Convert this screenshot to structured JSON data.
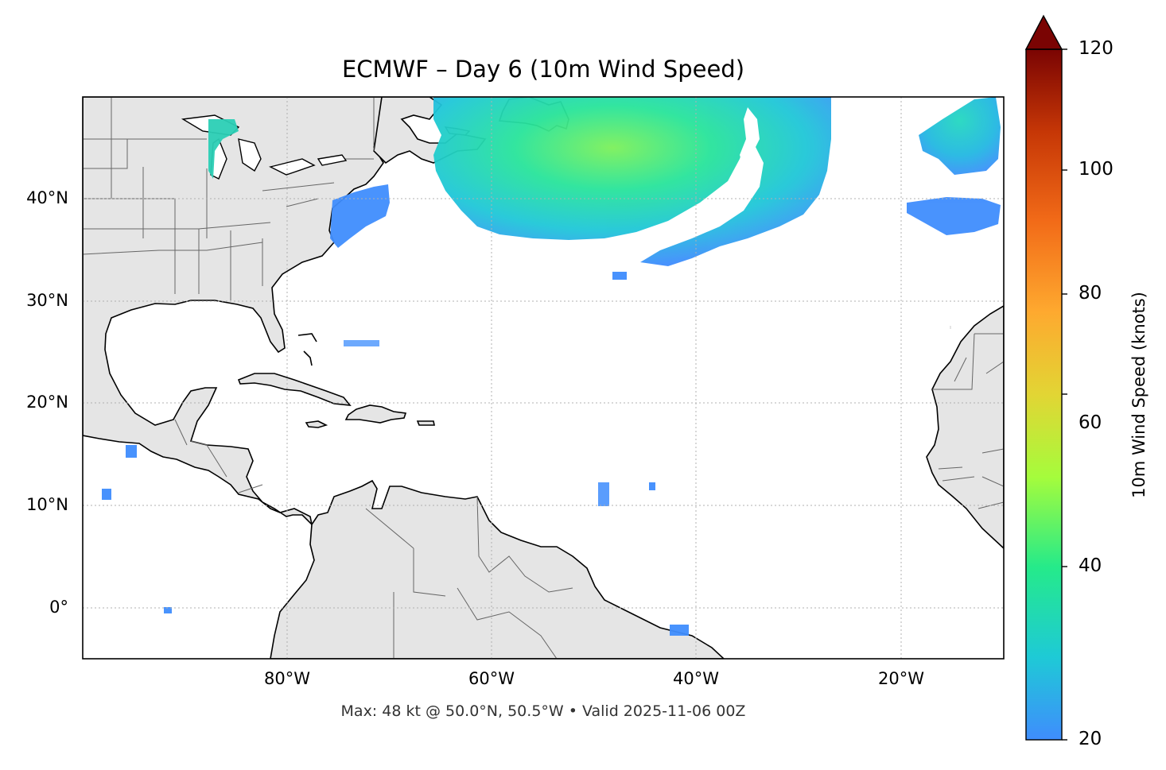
{
  "title": "ECMWF – Day 6 (10m Wind Speed)",
  "footer": "Max: 48 kt @ 50.0°N, 50.5°W • Valid 2025-11-06 00Z",
  "map": {
    "extent": {
      "lon": [
        -100,
        -10
      ],
      "lat": [
        -5,
        50
      ]
    },
    "lat_ticks": [
      "40°N",
      "30°N",
      "20°N",
      "10°N",
      "0°"
    ],
    "lon_ticks": [
      "80°W",
      "60°W",
      "40°W",
      "20°W"
    ],
    "gridlines": true,
    "land_color": "#e5e5e5",
    "ocean_color": "#ffffff"
  },
  "colorbar": {
    "label": "10m Wind Speed (knots)",
    "ticks": [
      "20",
      "40",
      "60",
      "80",
      "100",
      "120"
    ],
    "colormap": "turbo",
    "extend": "max",
    "colors": [
      "#3f8dfd",
      "#1ecad6",
      "#25ea8a",
      "#a5fc3c",
      "#e2d534",
      "#fea92f",
      "#f26b18",
      "#c63706",
      "#7a0403"
    ]
  },
  "max_point": {
    "value_kt": 48,
    "lat": 50.0,
    "lon": -50.5
  }
}
